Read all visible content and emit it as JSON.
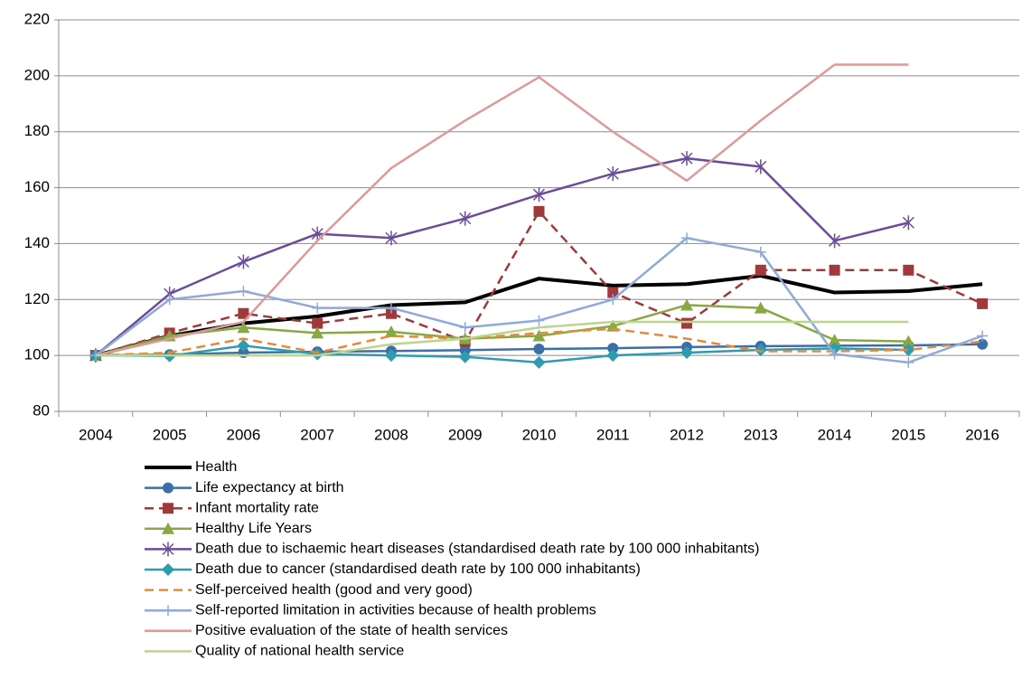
{
  "chart_data": {
    "type": "line",
    "categories": [
      "2004",
      "2005",
      "2006",
      "2007",
      "2008",
      "2009",
      "2010",
      "2011",
      "2012",
      "2013",
      "2014",
      "2015",
      "2016"
    ],
    "ylim": [
      80,
      220
    ],
    "yticks": [
      80,
      100,
      120,
      140,
      160,
      180,
      200,
      220
    ],
    "grid": true,
    "legend": "bottom",
    "series": [
      {
        "name": "Health",
        "color": "#000000",
        "width": 4,
        "marker": "none",
        "dash": false,
        "values": [
          100,
          107,
          111.5,
          114,
          118,
          119,
          127.5,
          125,
          125.5,
          128.5,
          122.5,
          123,
          125.5
        ]
      },
      {
        "name": "Life expectancy at birth",
        "color": "#3c6ea8",
        "width": 2.5,
        "marker": "circle",
        "dash": false,
        "values": [
          100,
          100.3,
          101,
          101.3,
          101.6,
          101.9,
          102.3,
          102.6,
          103,
          103.3,
          103.5,
          103.6,
          104
        ]
      },
      {
        "name": "Infant mortality rate",
        "color": "#a0393a",
        "width": 2.5,
        "marker": "square",
        "dash": true,
        "values": [
          100,
          108,
          115,
          111.5,
          115,
          105,
          151.5,
          122.5,
          111.5,
          130.5,
          130.5,
          130.5,
          118.5
        ]
      },
      {
        "name": "Healthy Life Years",
        "color": "#88a844",
        "width": 2.5,
        "marker": "triangle",
        "dash": false,
        "values": [
          100,
          107,
          110,
          108,
          108.5,
          106,
          107,
          110.5,
          118,
          117,
          105.5,
          105,
          null
        ]
      },
      {
        "name": "Death due to ischaemic heart diseases (standardised death rate by 100 000 inhabitants)",
        "color": "#6b4c9a",
        "width": 2.5,
        "marker": "star",
        "dash": false,
        "values": [
          100,
          122,
          133.5,
          143.5,
          142,
          149,
          157.5,
          165,
          170.5,
          167.5,
          141,
          147.5,
          null
        ]
      },
      {
        "name": "Death due to cancer (standardised death rate by 100 000 inhabitants)",
        "color": "#2f9bb0",
        "width": 2.5,
        "marker": "diamond",
        "dash": false,
        "values": [
          100,
          99.8,
          103.5,
          100.5,
          100,
          99.5,
          97.5,
          100,
          101,
          102,
          102.5,
          102,
          null
        ]
      },
      {
        "name": "Self-perceived health (good and very good)",
        "color": "#e8893a",
        "width": 2.5,
        "marker": "none",
        "dash": true,
        "values": [
          100,
          101,
          106,
          101,
          107,
          106,
          108,
          109.5,
          106,
          101.5,
          101.5,
          102,
          105
        ]
      },
      {
        "name": "Self-reported limitation in activities because of health problems",
        "color": "#8faad8",
        "width": 2.5,
        "marker": "plus",
        "dash": false,
        "values": [
          100,
          120,
          123,
          117,
          117,
          110,
          112.5,
          120,
          142,
          137,
          100.5,
          97.5,
          107
        ]
      },
      {
        "name": "Positive evaluation of the state of health services",
        "color": "#dc9a9a",
        "width": 2.5,
        "marker": "none",
        "dash": false,
        "values": [
          100,
          106,
          112,
          141,
          167,
          184,
          199.5,
          180,
          162.5,
          184,
          204,
          204,
          null
        ]
      },
      {
        "name": "Quality of national health service",
        "color": "#bcd58c",
        "width": 2.5,
        "marker": "none",
        "dash": false,
        "values": [
          100,
          100,
          100,
          100,
          104,
          106,
          110,
          112,
          112,
          112,
          112,
          112,
          null
        ]
      }
    ]
  }
}
